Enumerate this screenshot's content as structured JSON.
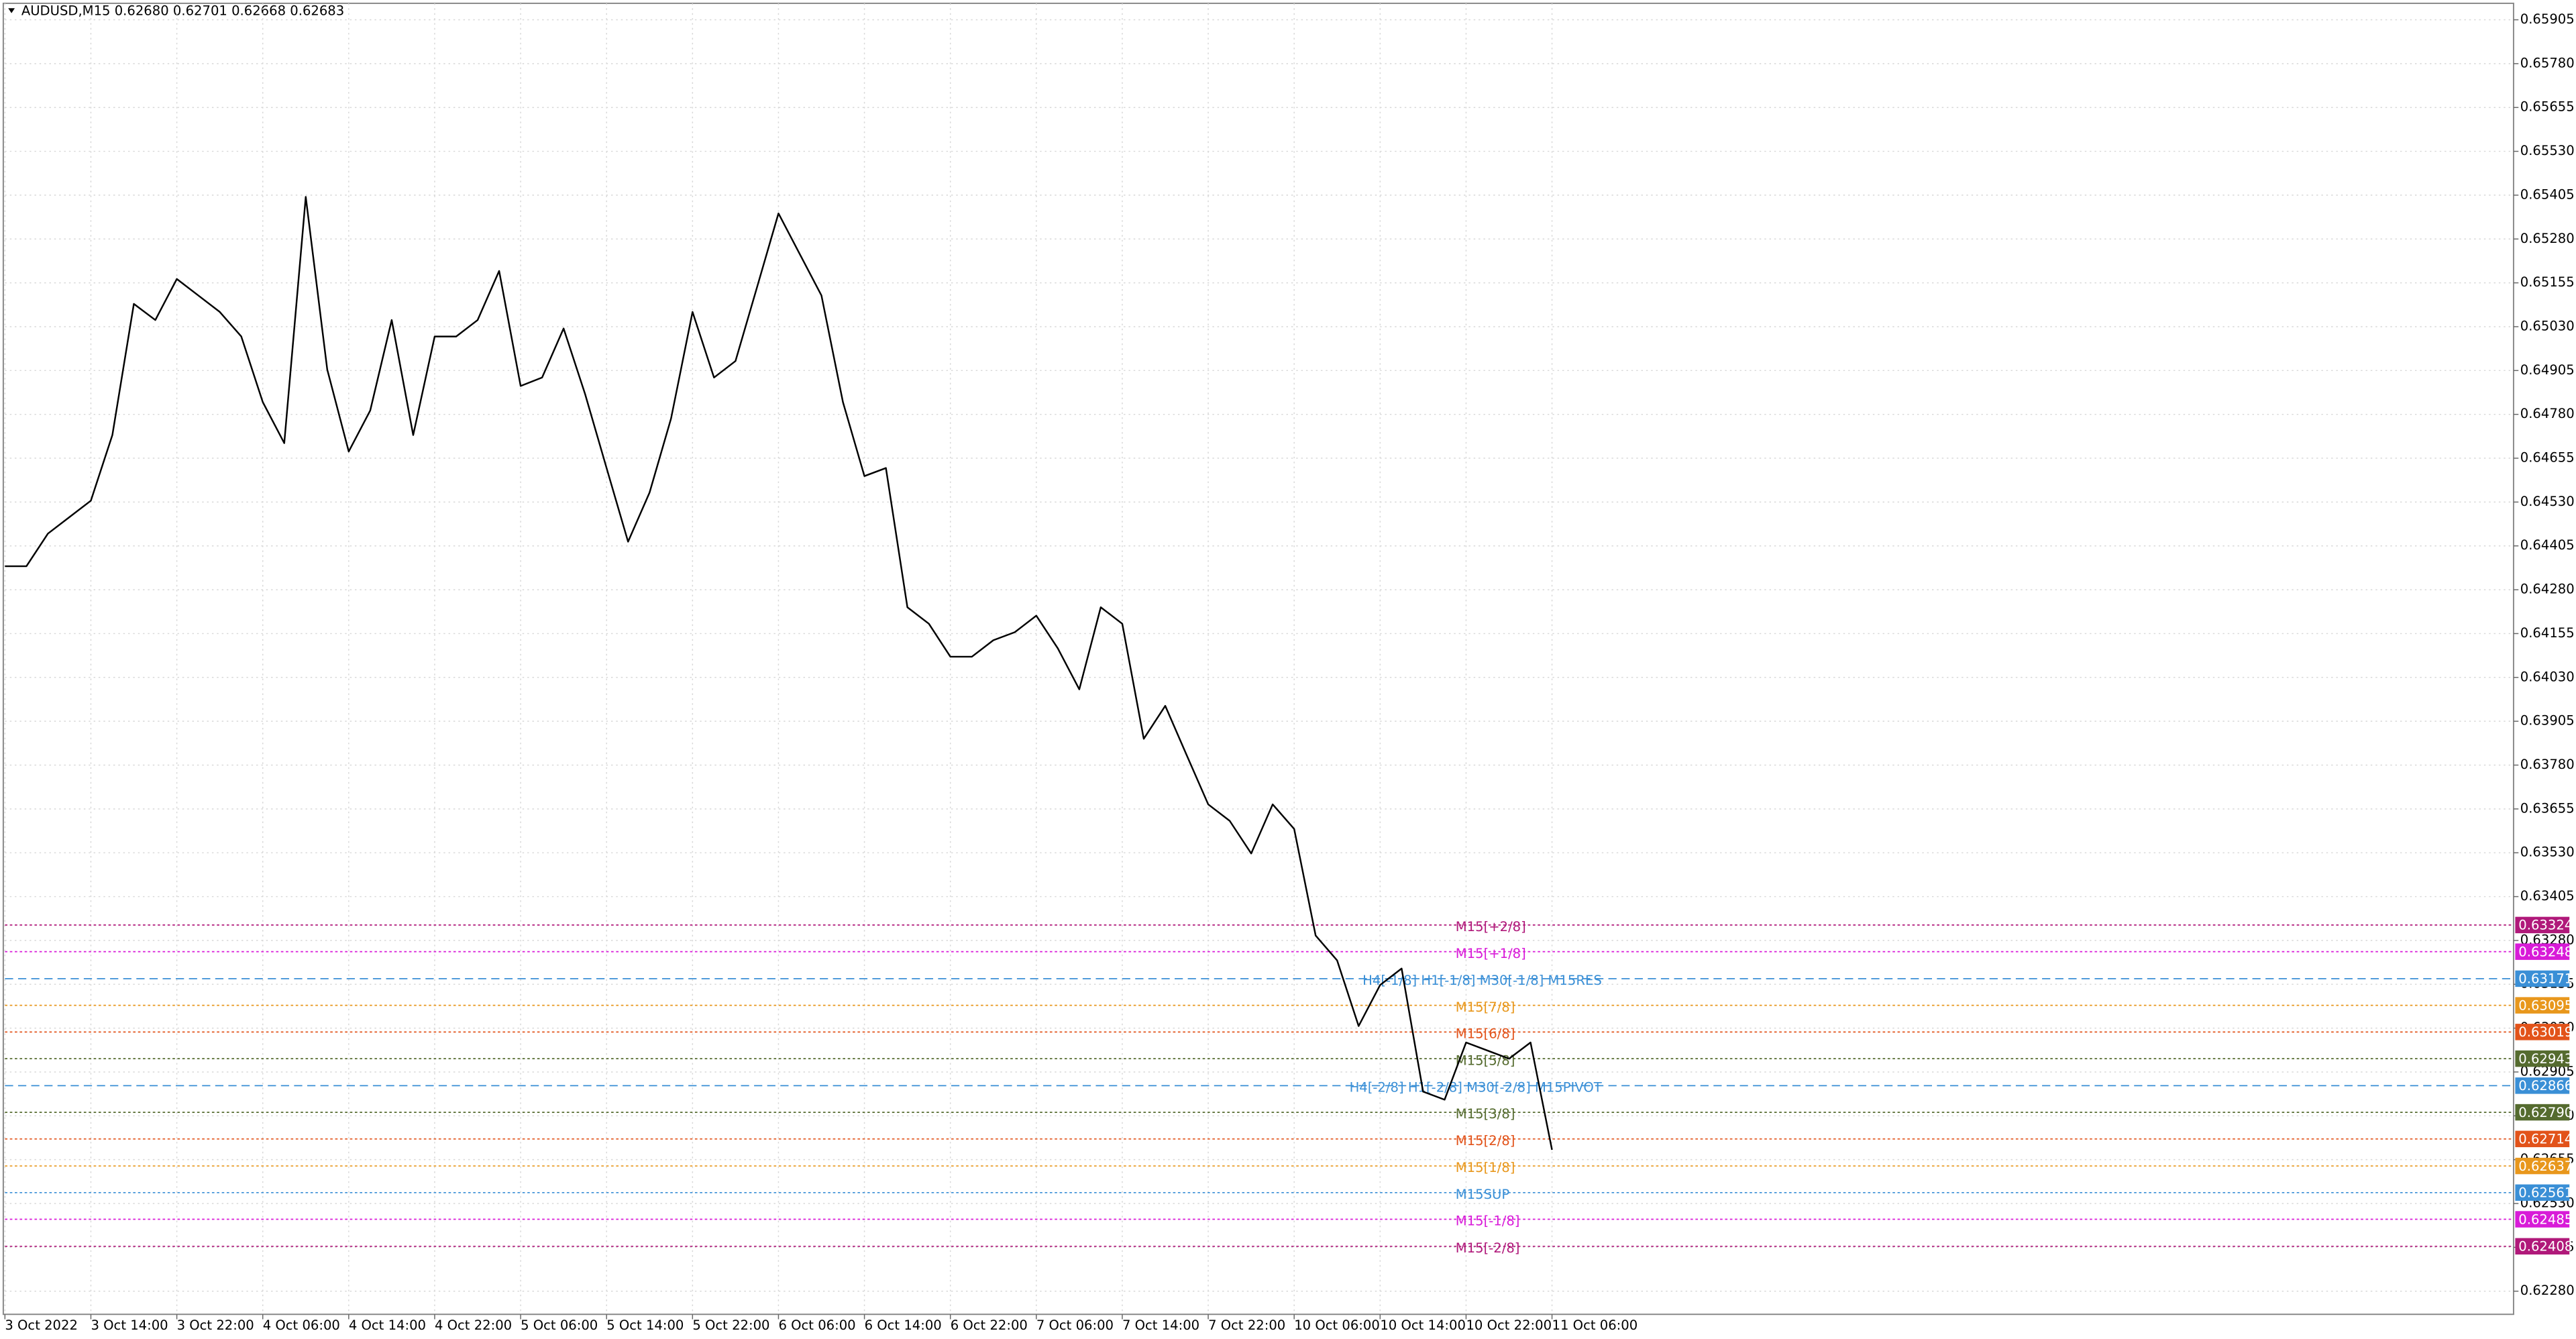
{
  "chart_data": {
    "type": "line",
    "title": "AUDUSD,M15  0.62680 0.62701 0.62668 0.62683",
    "color": "#000000",
    "grid": true,
    "x": [
      0,
      8,
      16,
      24,
      32,
      40,
      48,
      56,
      64,
      72,
      80,
      88,
      96,
      104,
      112,
      120,
      128,
      136,
      144,
      152,
      160,
      168,
      176,
      184,
      192,
      200,
      208,
      216,
      224,
      232,
      240,
      248,
      256,
      264,
      272,
      280,
      288,
      296,
      304,
      312,
      320,
      328,
      336,
      344,
      352,
      360,
      368,
      376,
      384,
      392,
      400,
      408,
      416,
      424,
      432,
      440,
      448,
      456,
      464,
      472,
      480,
      488,
      496,
      504,
      512,
      520,
      528,
      536,
      544,
      552,
      560,
      568,
      576
    ],
    "values": [
      0.64347,
      0.64347,
      0.6444,
      0.64487,
      0.64534,
      0.64721,
      0.65095,
      0.65049,
      0.65166,
      0.65119,
      0.65072,
      0.65002,
      0.64815,
      0.64698,
      0.654,
      0.64908,
      0.64674,
      0.64791,
      0.65049,
      0.64721,
      0.65002,
      0.65002,
      0.65049,
      0.65189,
      0.64861,
      0.64885,
      0.65025,
      0.64838,
      0.64627,
      0.64417,
      0.64557,
      0.64768,
      0.65072,
      0.64885,
      0.64932,
      0.65142,
      0.65353,
      0.65236,
      0.65119,
      0.64815,
      0.64604,
      0.64627,
      0.6423,
      0.64183,
      0.64089,
      0.64089,
      0.64136,
      0.64159,
      0.64206,
      0.64113,
      0.63996,
      0.6423,
      0.64183,
      0.63855,
      0.63949,
      0.63808,
      0.63668,
      0.63621,
      0.63528,
      0.63668,
      0.63598,
      0.63294,
      0.63223,
      0.63036,
      0.63153,
      0.632,
      0.62849,
      0.62826,
      0.62989,
      0.62966,
      0.62943,
      0.62989,
      0.62683
    ],
    "xlim": [
      0,
      934
    ],
    "xticks": [
      {
        "value": 0,
        "label": "3 Oct 2022"
      },
      {
        "value": 32,
        "label": "3 Oct 14:00"
      },
      {
        "value": 64,
        "label": "3 Oct 22:00"
      },
      {
        "value": 96,
        "label": "4 Oct 06:00"
      },
      {
        "value": 128,
        "label": "4 Oct 14:00"
      },
      {
        "value": 160,
        "label": "4 Oct 22:00"
      },
      {
        "value": 192,
        "label": "5 Oct 06:00"
      },
      {
        "value": 224,
        "label": "5 Oct 14:00"
      },
      {
        "value": 256,
        "label": "5 Oct 22:00"
      },
      {
        "value": 288,
        "label": "6 Oct 06:00"
      },
      {
        "value": 320,
        "label": "6 Oct 14:00"
      },
      {
        "value": 352,
        "label": "6 Oct 22:00"
      },
      {
        "value": 384,
        "label": "7 Oct 06:00"
      },
      {
        "value": 416,
        "label": "7 Oct 14:00"
      },
      {
        "value": 448,
        "label": "7 Oct 22:00"
      },
      {
        "value": 480,
        "label": "10 Oct 06:00"
      },
      {
        "value": 512,
        "label": "10 Oct 14:00"
      },
      {
        "value": 544,
        "label": "10 Oct 22:00"
      },
      {
        "value": 576,
        "label": "11 Oct 06:00"
      }
    ],
    "ylim": [
      0.62214,
      0.65952
    ],
    "yticks": [
      0.65905,
      {
        "value": 0.6578,
        "label": "0.65780"
      },
      0.65655,
      {
        "value": 0.6553,
        "label": "0.65530"
      },
      0.65405,
      {
        "value": 0.6528,
        "label": "0.65280"
      },
      0.65155,
      {
        "value": 0.6503,
        "label": "0.65030"
      },
      0.64905,
      {
        "value": 0.6478,
        "label": "0.64780"
      },
      0.64655,
      {
        "value": 0.6453,
        "label": "0.64530"
      },
      0.64405,
      {
        "value": 0.6428,
        "label": "0.64280"
      },
      0.64155,
      {
        "value": 0.6403,
        "label": "0.64030"
      },
      0.63905,
      {
        "value": 0.6378,
        "label": "0.63780"
      },
      0.63655,
      {
        "value": 0.6353,
        "label": "0.63530"
      },
      0.63405,
      {
        "value": 0.6328,
        "label": "0.63280"
      },
      0.63155,
      {
        "value": 0.6303,
        "label": "0.63030"
      },
      0.62905,
      {
        "value": 0.6278,
        "label": "0.62780"
      },
      0.62655,
      {
        "value": 0.6253,
        "label": "0.62530"
      },
      0.62405,
      {
        "value": 0.6228,
        "label": "0.62280"
      }
    ],
    "levels": [
      {
        "name": "M15[+2/8]",
        "value": 0.63324,
        "color": "#b0197a",
        "style": "dotted"
      },
      {
        "name": "M15[+1/8]",
        "value": 0.63248,
        "color": "#d81bd8",
        "style": "dotted"
      },
      {
        "name": "H4[-1/8] H1[-1/8] M30[-1/8] M15RES",
        "value": 0.63171,
        "color": "#3a8fd6",
        "style": "dashed"
      },
      {
        "name": "M15[7/8]",
        "value": 0.63095,
        "color": "#e8971c",
        "style": "dotted"
      },
      {
        "name": "M15[6/8]",
        "value": 0.63019,
        "color": "#e2531a",
        "style": "dotted"
      },
      {
        "name": "M15[5/8]",
        "value": 0.62943,
        "color": "#556b2f",
        "style": "dotted"
      },
      {
        "name": "H4[-2/8] H1[-2/8] M30[-2/8] M15PIVOT",
        "value": 0.62866,
        "color": "#3a8fd6",
        "style": "dashed"
      },
      {
        "name": "M15[3/8]",
        "value": 0.6279,
        "value_label": "0.62790",
        "color": "#556b2f",
        "style": "dotted"
      },
      {
        "name": "M15[2/8]",
        "value": 0.62714,
        "color": "#e2531a",
        "style": "dotted"
      },
      {
        "name": "M15[1/8]",
        "value": 0.62637,
        "color": "#e8971c",
        "style": "dotted"
      },
      {
        "name": "M15SUP",
        "value": 0.62561,
        "color": "#3a8fd6",
        "style": "dotted"
      },
      {
        "name": "M15[-1/8]",
        "value": 0.62485,
        "color": "#d81bd8",
        "style": "dotted"
      },
      {
        "name": "M15[-2/8]",
        "value": 0.62408,
        "color": "#b0197a",
        "style": "dotted"
      }
    ]
  }
}
